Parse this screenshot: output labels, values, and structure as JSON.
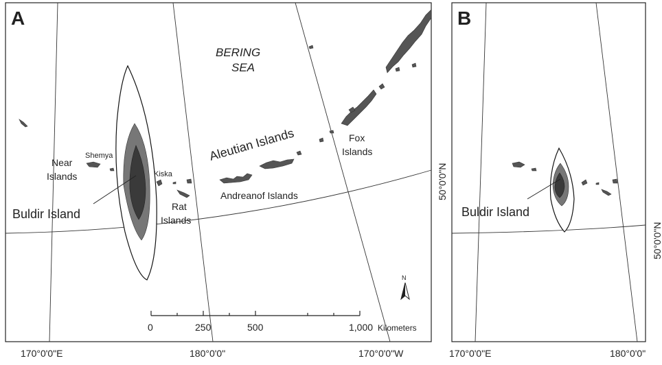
{
  "panels": {
    "a": {
      "letter": "A"
    },
    "b": {
      "letter": "B"
    }
  },
  "labels": {
    "sea_line1": "BERING",
    "sea_line2": "SEA",
    "aleutian": "Aleutian Islands",
    "fox_line1": "Fox",
    "fox_line2": "Islands",
    "near_line1": "Near",
    "near_line2": "Islands",
    "shemya": "Shemya",
    "kiska": "Kiska",
    "rat_line1": "Rat",
    "rat_line2": "Islands",
    "andreanof": "Andreanof Islands",
    "buldir_a": "Buldir Island",
    "buldir_b": "Buldir Island",
    "north": "N"
  },
  "coordinates": {
    "a_bottom_left": "170°0'0\"E",
    "a_bottom_mid": "180°0'0\"",
    "a_bottom_right": "170°0'0\"W",
    "a_right_lat": "50°0'0\"N",
    "b_bottom_left": "170°0'0\"E",
    "b_bottom_right": "180°0'0\"",
    "b_right_lat": "50°0'0\"N"
  },
  "scale_bar": {
    "ticks": [
      "0",
      "250",
      "500",
      "1,000"
    ],
    "unit": "Kilometers"
  },
  "colors": {
    "land": "#555555",
    "contour_outer": "#ffffff",
    "contour_mid": "#777777",
    "contour_inner": "#3a3a3a"
  }
}
